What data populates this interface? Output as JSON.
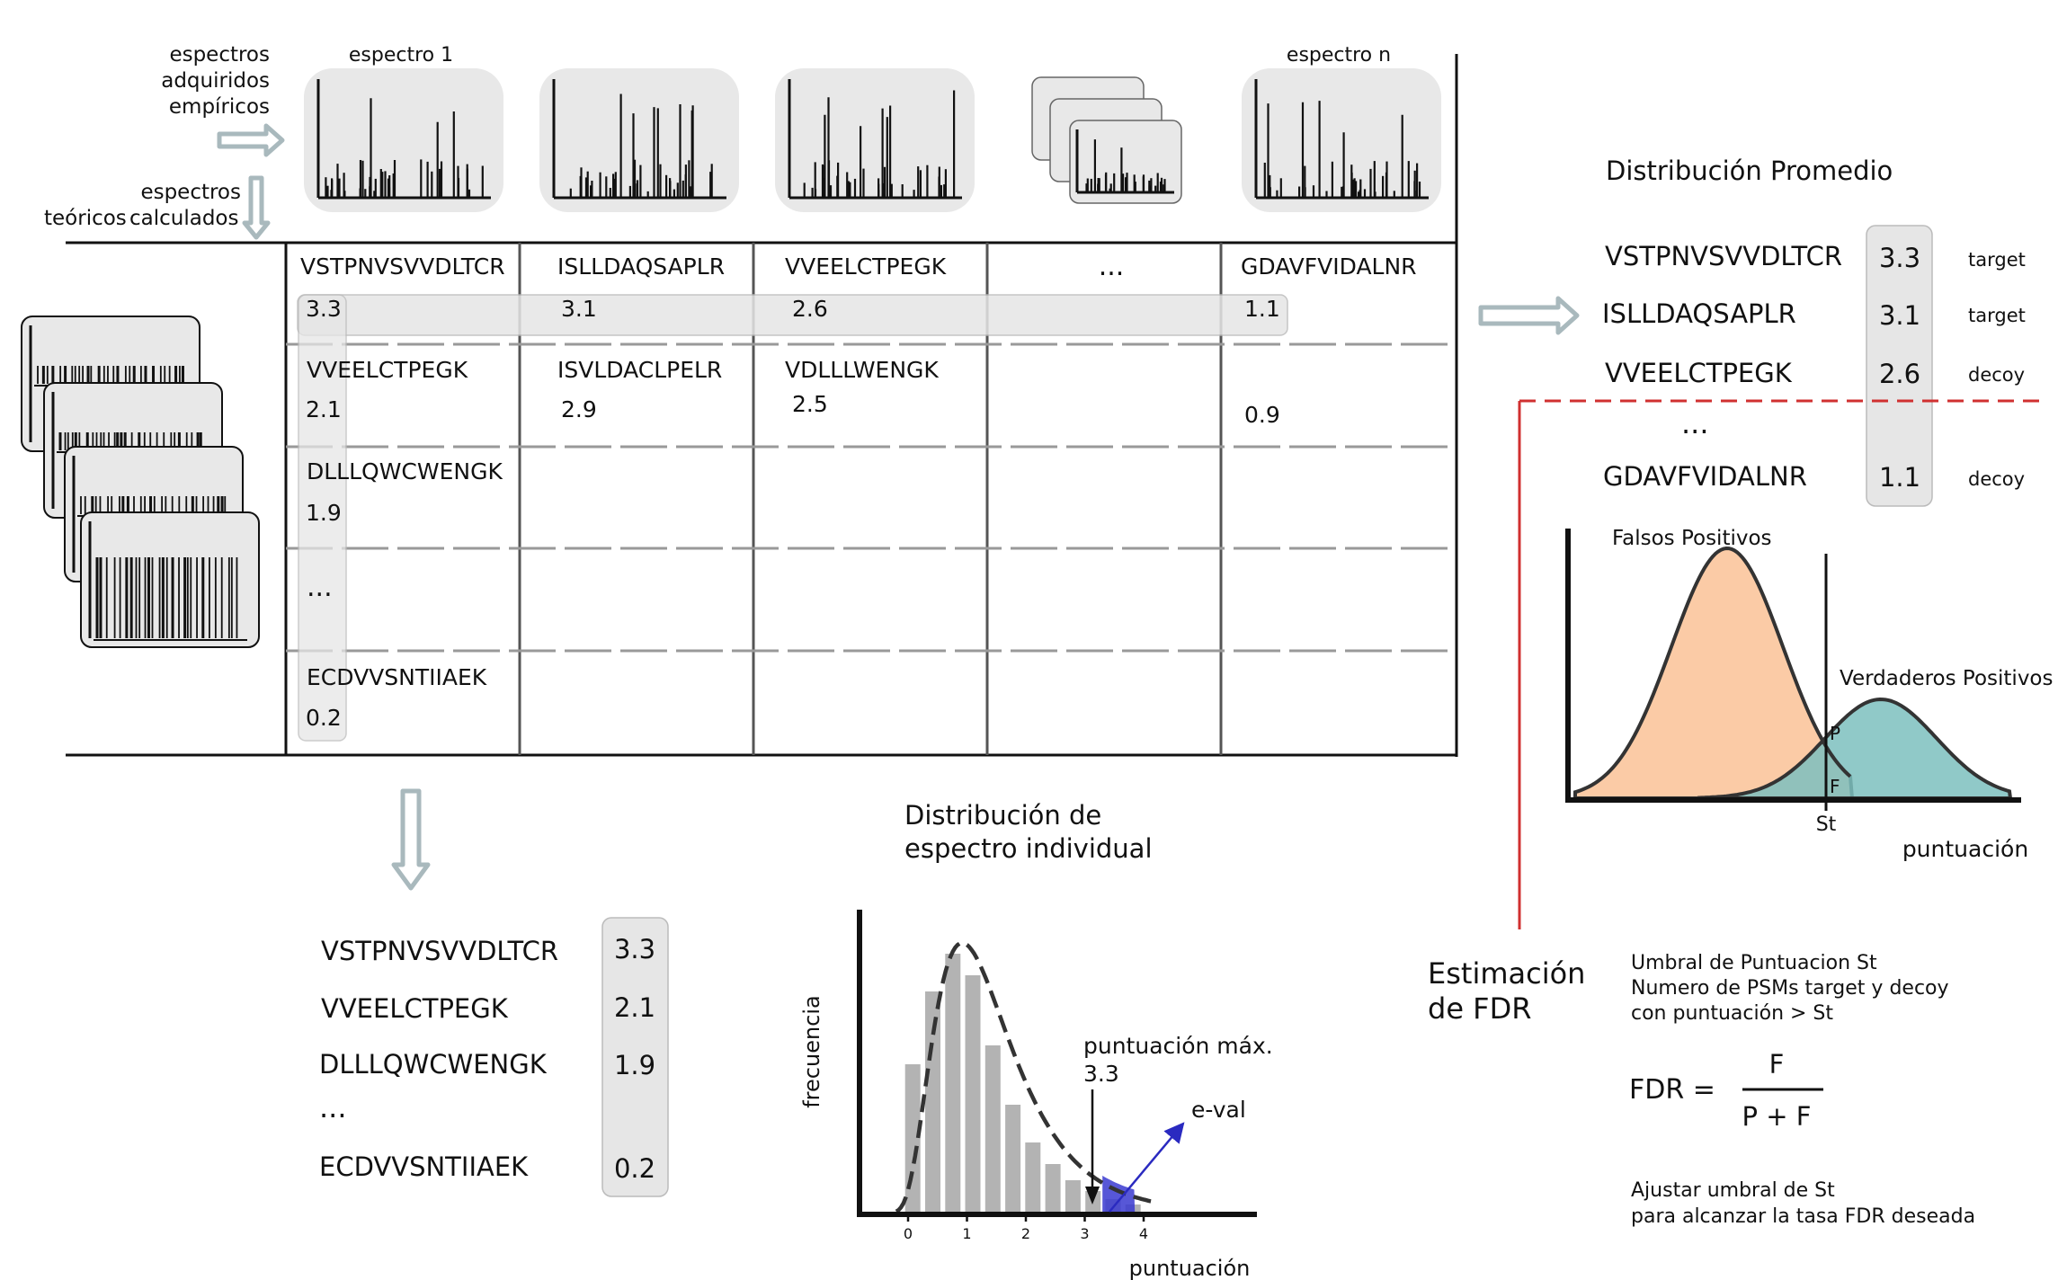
{
  "top_left": {
    "empirical_label": [
      "espectros",
      "adquiridos",
      "empíricos"
    ],
    "theoretical_label": [
      "espectros",
      "teóricos",
      "calculados"
    ]
  },
  "spectra_headers": {
    "first": "espectro 1",
    "last": "espectro n"
  },
  "matrix": {
    "ellipsis": "...",
    "columns": [
      {
        "cells": [
          {
            "peptide": "VSTPNVSVVDLTCR",
            "score": "3.3"
          },
          {
            "peptide": "VVEELCTPEGK",
            "score": "2.1"
          },
          {
            "peptide": "DLLLQWCWENGK",
            "score": "1.9"
          },
          {
            "peptide": "...",
            "score": ""
          },
          {
            "peptide": "ECDVVSNTIIAEK",
            "score": "0.2"
          }
        ]
      },
      {
        "cells": [
          {
            "peptide": "ISLLDAQSAPLR",
            "score": "3.1"
          },
          {
            "peptide": "ISVLDACLPELR",
            "score": "2.9"
          }
        ]
      },
      {
        "cells": [
          {
            "peptide": "VVEELCTPEGK",
            "score": "2.6"
          },
          {
            "peptide": "VDLLLWENGK",
            "score": "2.5"
          }
        ]
      },
      {
        "cells": []
      },
      {
        "cells": [
          {
            "peptide": "GDAVFVIDALNR",
            "score": "1.1"
          },
          {
            "peptide": "",
            "score": "0.9"
          }
        ]
      }
    ]
  },
  "individual_list": {
    "ellipsis": "...",
    "rows": [
      {
        "peptide": "VSTPNVSVVDLTCR",
        "score": "3.3"
      },
      {
        "peptide": "VVEELCTPEGK",
        "score": "2.1"
      },
      {
        "peptide": "DLLLQWCWENGK",
        "score": "1.9"
      },
      {
        "peptide": "ECDVVSNTIIAEK",
        "score": "0.2"
      }
    ]
  },
  "individual_distribution": {
    "title": [
      "Distribución de",
      "espectro individual"
    ],
    "ylabel": "frecuencia",
    "xlabel": "puntuación",
    "ticks": [
      "0",
      "1",
      "2",
      "3",
      "4"
    ],
    "max_score_label": "puntuación máx.",
    "max_score_value": "3.3",
    "eval_label": "e-val",
    "histogram_bar_colour": "#b3b3b3",
    "eval_colour": "#3a3ad0"
  },
  "average_distribution": {
    "title": "Distribución Promedio",
    "ellipsis": "...",
    "rows": [
      {
        "peptide": "VSTPNVSVVDLTCR",
        "score": "3.3",
        "type": "target"
      },
      {
        "peptide": "ISLLDAQSAPLR",
        "score": "3.1",
        "type": "target"
      },
      {
        "peptide": "VVEELCTPEGK",
        "score": "2.6",
        "type": "decoy"
      },
      {
        "peptide": "GDAVFVIDALNR",
        "score": "1.1",
        "type": "decoy"
      }
    ]
  },
  "fdr_chart": {
    "false_label": "Falsos Positivos",
    "true_label": "Verdaderos Positivos",
    "p_label": "P",
    "f_label": "F",
    "threshold_label": "St",
    "xlabel": "puntuación",
    "false_colour": "#fbcba6",
    "true_colour": "#7cc0be"
  },
  "fdr_estimation": {
    "title": [
      "Estimación",
      "de FDR"
    ],
    "notes": [
      "Umbral de Puntuacion St",
      "Numero de PSMs target y decoy",
      "con puntuación > St"
    ],
    "formula_left": "FDR =",
    "numerator": "F",
    "denominator": "P + F",
    "adjust": [
      "Ajustar umbral de St",
      "para alcanzar la tasa FDR deseada"
    ],
    "divider_colour": "#d03030"
  }
}
